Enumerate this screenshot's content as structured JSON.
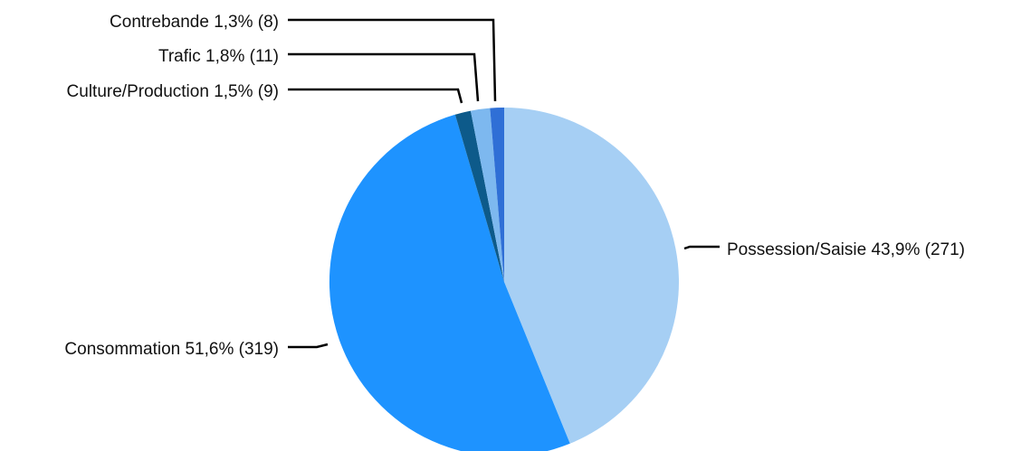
{
  "chart_data": {
    "type": "pie",
    "title": "",
    "legend": "none",
    "slices": [
      {
        "name": "Possession/Saisie",
        "percent_label": "43,9%",
        "count": 271,
        "label": "Possession/Saisie 43,9% (271)",
        "color": "#a6cff4"
      },
      {
        "name": "Consommation",
        "percent_label": "51,6%",
        "count": 319,
        "label": "Consommation 51,6% (319)",
        "color": "#1e93ff"
      },
      {
        "name": "Culture/Production",
        "percent_label": "1,5%",
        "count": 9,
        "label": "Culture/Production 1,5% (9)",
        "color": "#0d5a8a"
      },
      {
        "name": "Trafic",
        "percent_label": "1,8%",
        "count": 11,
        "label": "Trafic 1,8% (11)",
        "color": "#7db8ef"
      },
      {
        "name": "Contrebande",
        "percent_label": "1,3%",
        "count": 8,
        "label": "Contrebande 1,3% (8)",
        "color": "#2f6fd6"
      }
    ]
  }
}
